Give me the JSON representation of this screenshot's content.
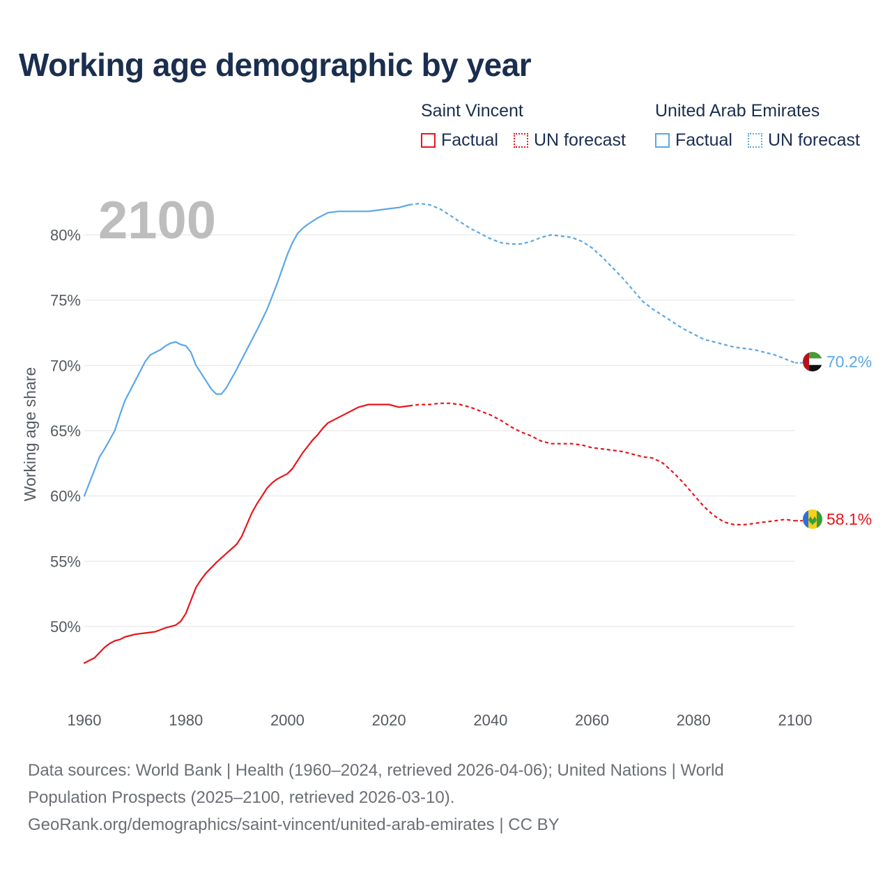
{
  "title": "Working age demographic by year",
  "legend": {
    "groups": [
      {
        "name": "Saint Vincent",
        "factual": "Factual",
        "forecast": "UN forecast",
        "color": "#e8141b"
      },
      {
        "name": "United Arab Emirates",
        "factual": "Factual",
        "forecast": "UN forecast",
        "color": "#5aa7e6"
      }
    ]
  },
  "footer": {
    "line1": "Data sources: World Bank | Health (1960–2024, retrieved 2026-04-06); United Nations | World",
    "line2": "Population Prospects (2025–2100, retrieved 2026-03-10).",
    "line3": "GeoRank.org/demographics/saint-vincent/united-arab-emirates | CC BY"
  },
  "chart_data": {
    "type": "line",
    "title": "Working age demographic by year",
    "year_label": "2100",
    "xlabel": "",
    "ylabel": "Working age share",
    "xlim": [
      1960,
      2100
    ],
    "ylim": [
      45.5,
      83.5
    ],
    "x_ticks": [
      1960,
      1980,
      2000,
      2020,
      2040,
      2060,
      2080,
      2100
    ],
    "y_ticks": [
      50,
      55,
      60,
      65,
      70,
      75,
      80
    ],
    "y_tick_labels": [
      "50%",
      "55%",
      "60%",
      "65%",
      "70%",
      "75%",
      "80%"
    ],
    "forecast_start": 2024,
    "series": [
      {
        "name": "Saint Vincent",
        "color": "#e8141b",
        "end_label": "58.1%",
        "flag": "saint-vincent-flag",
        "points": [
          [
            1960,
            47.2
          ],
          [
            1962,
            47.6
          ],
          [
            1964,
            48.4
          ],
          [
            1965,
            48.7
          ],
          [
            1966,
            48.9
          ],
          [
            1967,
            49.0
          ],
          [
            1968,
            49.2
          ],
          [
            1970,
            49.4
          ],
          [
            1972,
            49.5
          ],
          [
            1974,
            49.6
          ],
          [
            1976,
            49.9
          ],
          [
            1978,
            50.1
          ],
          [
            1979,
            50.4
          ],
          [
            1980,
            51.0
          ],
          [
            1981,
            52.0
          ],
          [
            1982,
            53.0
          ],
          [
            1983,
            53.6
          ],
          [
            1984,
            54.1
          ],
          [
            1986,
            54.9
          ],
          [
            1988,
            55.6
          ],
          [
            1990,
            56.3
          ],
          [
            1991,
            56.9
          ],
          [
            1992,
            57.8
          ],
          [
            1993,
            58.7
          ],
          [
            1994,
            59.4
          ],
          [
            1995,
            60.0
          ],
          [
            1996,
            60.6
          ],
          [
            1997,
            61.0
          ],
          [
            1998,
            61.3
          ],
          [
            2000,
            61.7
          ],
          [
            2001,
            62.1
          ],
          [
            2002,
            62.7
          ],
          [
            2003,
            63.3
          ],
          [
            2004,
            63.8
          ],
          [
            2005,
            64.3
          ],
          [
            2006,
            64.7
          ],
          [
            2007,
            65.2
          ],
          [
            2008,
            65.6
          ],
          [
            2010,
            66.0
          ],
          [
            2012,
            66.4
          ],
          [
            2014,
            66.8
          ],
          [
            2016,
            67.0
          ],
          [
            2018,
            67.0
          ],
          [
            2020,
            67.0
          ],
          [
            2022,
            66.8
          ],
          [
            2024,
            66.9
          ],
          [
            2026,
            67.0
          ],
          [
            2028,
            67.0
          ],
          [
            2030,
            67.1
          ],
          [
            2032,
            67.1
          ],
          [
            2034,
            67.0
          ],
          [
            2036,
            66.8
          ],
          [
            2038,
            66.5
          ],
          [
            2040,
            66.2
          ],
          [
            2042,
            65.8
          ],
          [
            2044,
            65.3
          ],
          [
            2046,
            64.9
          ],
          [
            2048,
            64.6
          ],
          [
            2050,
            64.2
          ],
          [
            2052,
            64.0
          ],
          [
            2054,
            64.0
          ],
          [
            2056,
            64.0
          ],
          [
            2058,
            63.9
          ],
          [
            2060,
            63.7
          ],
          [
            2062,
            63.6
          ],
          [
            2064,
            63.5
          ],
          [
            2066,
            63.4
          ],
          [
            2068,
            63.2
          ],
          [
            2070,
            63.0
          ],
          [
            2072,
            62.9
          ],
          [
            2074,
            62.5
          ],
          [
            2076,
            61.8
          ],
          [
            2078,
            61.0
          ],
          [
            2080,
            60.1
          ],
          [
            2082,
            59.2
          ],
          [
            2084,
            58.5
          ],
          [
            2086,
            58.0
          ],
          [
            2088,
            57.8
          ],
          [
            2090,
            57.8
          ],
          [
            2092,
            57.9
          ],
          [
            2094,
            58.0
          ],
          [
            2096,
            58.1
          ],
          [
            2098,
            58.2
          ],
          [
            2100,
            58.1
          ]
        ]
      },
      {
        "name": "United Arab Emirates",
        "color": "#5aa7e6",
        "end_label": "70.2%",
        "flag": "uae-flag",
        "points": [
          [
            1960,
            60.0
          ],
          [
            1962,
            62.0
          ],
          [
            1963,
            63.0
          ],
          [
            1964,
            63.6
          ],
          [
            1965,
            64.3
          ],
          [
            1966,
            65.0
          ],
          [
            1967,
            66.2
          ],
          [
            1968,
            67.3
          ],
          [
            1970,
            68.8
          ],
          [
            1972,
            70.3
          ],
          [
            1973,
            70.8
          ],
          [
            1975,
            71.2
          ],
          [
            1976,
            71.5
          ],
          [
            1977,
            71.7
          ],
          [
            1978,
            71.8
          ],
          [
            1979,
            71.6
          ],
          [
            1980,
            71.5
          ],
          [
            1981,
            71.0
          ],
          [
            1982,
            70.0
          ],
          [
            1984,
            68.8
          ],
          [
            1985,
            68.2
          ],
          [
            1986,
            67.8
          ],
          [
            1987,
            67.8
          ],
          [
            1988,
            68.3
          ],
          [
            1990,
            69.7
          ],
          [
            1992,
            71.2
          ],
          [
            1994,
            72.7
          ],
          [
            1996,
            74.3
          ],
          [
            1998,
            76.3
          ],
          [
            2000,
            78.5
          ],
          [
            2001,
            79.4
          ],
          [
            2002,
            80.1
          ],
          [
            2003,
            80.5
          ],
          [
            2004,
            80.8
          ],
          [
            2006,
            81.3
          ],
          [
            2008,
            81.7
          ],
          [
            2010,
            81.8
          ],
          [
            2012,
            81.8
          ],
          [
            2014,
            81.8
          ],
          [
            2016,
            81.8
          ],
          [
            2018,
            81.9
          ],
          [
            2020,
            82.0
          ],
          [
            2022,
            82.1
          ],
          [
            2024,
            82.3
          ],
          [
            2026,
            82.4
          ],
          [
            2028,
            82.3
          ],
          [
            2030,
            82.0
          ],
          [
            2032,
            81.5
          ],
          [
            2034,
            81.0
          ],
          [
            2036,
            80.5
          ],
          [
            2038,
            80.1
          ],
          [
            2040,
            79.7
          ],
          [
            2042,
            79.4
          ],
          [
            2044,
            79.3
          ],
          [
            2046,
            79.3
          ],
          [
            2048,
            79.5
          ],
          [
            2050,
            79.8
          ],
          [
            2052,
            80.0
          ],
          [
            2054,
            79.9
          ],
          [
            2056,
            79.8
          ],
          [
            2058,
            79.5
          ],
          [
            2060,
            79.0
          ],
          [
            2062,
            78.3
          ],
          [
            2064,
            77.5
          ],
          [
            2066,
            76.7
          ],
          [
            2068,
            75.8
          ],
          [
            2070,
            74.9
          ],
          [
            2072,
            74.3
          ],
          [
            2074,
            73.8
          ],
          [
            2076,
            73.3
          ],
          [
            2078,
            72.8
          ],
          [
            2080,
            72.4
          ],
          [
            2082,
            72.0
          ],
          [
            2084,
            71.8
          ],
          [
            2086,
            71.6
          ],
          [
            2088,
            71.4
          ],
          [
            2090,
            71.3
          ],
          [
            2092,
            71.2
          ],
          [
            2094,
            71.0
          ],
          [
            2096,
            70.8
          ],
          [
            2098,
            70.5
          ],
          [
            2100,
            70.2
          ]
        ]
      }
    ]
  }
}
